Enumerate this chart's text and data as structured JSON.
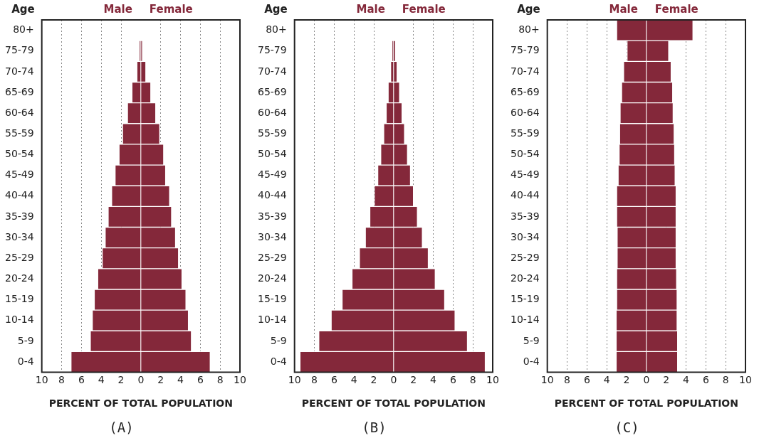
{
  "chart_data": [
    {
      "type": "bar",
      "orientation": "horizontal",
      "stacked": true,
      "title": "(A)",
      "xlabel": "PERCENT OF TOTAL POPULATION",
      "ylabel": "Age",
      "categories": [
        "80+",
        "75-79",
        "70-74",
        "65-69",
        "60-64",
        "55-59",
        "50-54",
        "45-49",
        "40-44",
        "35-39",
        "30-34",
        "25-29",
        "20-24",
        "15-19",
        "10-14",
        "5-9",
        "0-4"
      ],
      "series": [
        {
          "name": "Male",
          "color": "#84283a",
          "values": [
            null,
            -0.15,
            -0.4,
            -0.9,
            -1.35,
            -1.85,
            -2.2,
            -2.6,
            -2.95,
            -3.3,
            -3.6,
            -3.9,
            -4.35,
            -4.7,
            -4.9,
            -5.1,
            -7.05
          ]
        },
        {
          "name": "Female",
          "color": "#84283a",
          "values": [
            null,
            0.15,
            0.5,
            1.0,
            1.5,
            1.9,
            2.3,
            2.5,
            2.9,
            3.1,
            3.5,
            3.8,
            4.15,
            4.55,
            4.8,
            5.1,
            7.0
          ]
        }
      ],
      "xlim": [
        -10,
        10
      ],
      "xticks": [
        {
          "value": -10,
          "label": "10"
        },
        {
          "value": -8,
          "label": "8"
        },
        {
          "value": -6,
          "label": "6"
        },
        {
          "value": -4,
          "label": "4"
        },
        {
          "value": -2,
          "label": "2"
        },
        0,
        2,
        4,
        6,
        8,
        10
      ],
      "grid": "x",
      "legend": false
    },
    {
      "type": "bar",
      "orientation": "horizontal",
      "stacked": true,
      "title": "(B)",
      "xlabel": "PERCENT OF TOTAL POPULATION",
      "ylabel": "Age",
      "categories": [
        "80+",
        "75-79",
        "70-74",
        "65-69",
        "60-64",
        "55-59",
        "50-54",
        "45-49",
        "40-44",
        "35-39",
        "30-34",
        "25-29",
        "20-24",
        "15-19",
        "10-14",
        "5-9",
        "0-4"
      ],
      "series": [
        {
          "name": "Male",
          "color": "#84283a",
          "values": [
            null,
            -0.15,
            -0.3,
            -0.55,
            -0.75,
            -1.0,
            -1.3,
            -1.6,
            -1.95,
            -2.4,
            -2.85,
            -3.45,
            -4.2,
            -5.2,
            -6.3,
            -7.55,
            -9.45
          ]
        },
        {
          "name": "Female",
          "color": "#84283a",
          "values": [
            null,
            0.2,
            0.35,
            0.6,
            0.85,
            1.1,
            1.4,
            1.7,
            2.0,
            2.4,
            2.9,
            3.5,
            4.2,
            5.15,
            6.2,
            7.45,
            9.25
          ]
        }
      ],
      "xlim": [
        -10,
        10
      ],
      "xticks": [
        {
          "value": -10,
          "label": "10"
        },
        {
          "value": -8,
          "label": "8"
        },
        {
          "value": -6,
          "label": "6"
        },
        {
          "value": -4,
          "label": "4"
        },
        {
          "value": -2,
          "label": "2"
        },
        0,
        2,
        4,
        6,
        8,
        10
      ],
      "grid": "x",
      "legend": false
    },
    {
      "type": "bar",
      "orientation": "horizontal",
      "stacked": true,
      "title": "(C)",
      "xlabel": "PERCENT OF TOTAL POPULATION",
      "ylabel": "Age",
      "categories": [
        "80+",
        "75-79",
        "70-74",
        "65-69",
        "60-64",
        "55-59",
        "50-54",
        "45-49",
        "40-44",
        "35-39",
        "30-34",
        "25-29",
        "20-24",
        "15-19",
        "10-14",
        "5-9",
        "0-4"
      ],
      "series": [
        {
          "name": "Male",
          "color": "#84283a",
          "values": [
            -3.0,
            -1.95,
            -2.3,
            -2.5,
            -2.65,
            -2.7,
            -2.75,
            -2.85,
            -3.0,
            -3.0,
            -2.95,
            -2.95,
            -3.0,
            -3.0,
            -3.05,
            -3.05,
            -3.05
          ]
        },
        {
          "name": "Female",
          "color": "#84283a",
          "values": [
            4.7,
            2.25,
            2.5,
            2.65,
            2.7,
            2.8,
            2.85,
            2.9,
            3.0,
            3.0,
            3.0,
            3.0,
            3.05,
            3.1,
            3.1,
            3.15,
            3.15
          ]
        }
      ],
      "xlim": [
        -10,
        10
      ],
      "xticks": [
        {
          "value": -10,
          "label": "10"
        },
        {
          "value": -8,
          "label": "8"
        },
        {
          "value": -6,
          "label": "6"
        },
        {
          "value": -4,
          "label": "4"
        },
        {
          "value": -2,
          "label": "2"
        },
        0,
        2,
        4,
        6,
        8,
        10
      ],
      "grid": "x",
      "legend": false
    }
  ]
}
